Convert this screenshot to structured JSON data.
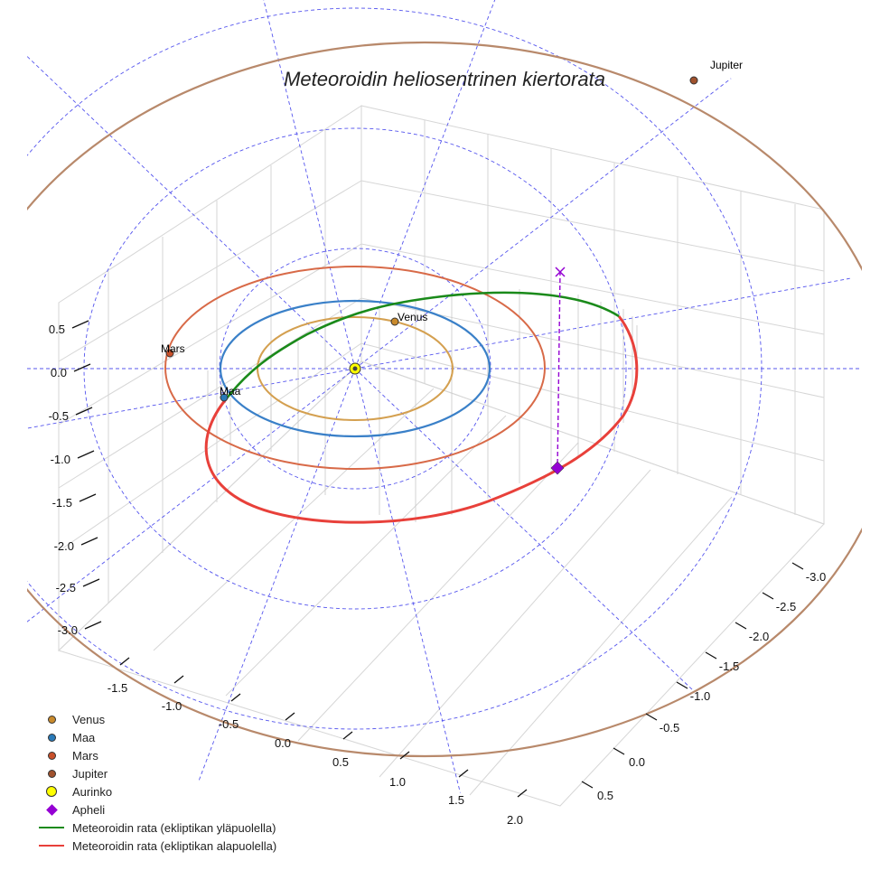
{
  "chart_data": {
    "type": "line",
    "projection": "3d",
    "title": "Meteoroidin heliosentrinen kiertorata",
    "axes": {
      "x": {
        "label": "",
        "ticks": [
          "-1.5",
          "-1.0",
          "-0.5",
          "0.0",
          "0.5",
          "1.0",
          "1.5",
          "2.0"
        ]
      },
      "y": {
        "label": "",
        "ticks": [
          "-3.0",
          "-2.5",
          "-2.0",
          "-1.5",
          "-1.0",
          "-0.5",
          "0.0",
          "0.5"
        ]
      },
      "z": {
        "label": "",
        "ticks": [
          "0.5",
          "0.0",
          "-0.5",
          "-1.0",
          "-1.5",
          "-2.0",
          "-2.5",
          "-3.0"
        ]
      }
    },
    "reference_circles_au": [
      1,
      2,
      3
    ],
    "planets": [
      {
        "name": "Venus",
        "label": "Venus",
        "orbit_radius_au": 0.72,
        "color": "#c98a2c",
        "orbit_color": "#d4a050"
      },
      {
        "name": "Maa",
        "label": "Maa",
        "orbit_radius_au": 1.0,
        "color": "#2a7ab8",
        "orbit_color": "#3a80c8"
      },
      {
        "name": "Mars",
        "label": "Mars",
        "orbit_radius_au": 1.52,
        "color": "#c8502a",
        "orbit_color": "#d86a48"
      },
      {
        "name": "Jupiter",
        "label": "Jupiter",
        "orbit_radius_au": 5.2,
        "color": "#a0522d",
        "orbit_color": "#b8896b"
      }
    ],
    "sun": {
      "name": "Aurinko",
      "color": "#ffff00"
    },
    "aphelion": {
      "name": "Apheli",
      "color": "#9400d3"
    },
    "meteoroid": {
      "above_label": "Meteoroidin rata (ekliptikan yläpuolella)",
      "below_label": "Meteoroidin rata (ekliptikan alapuolella)",
      "above_color": "#1a8a1a",
      "below_color": "#e8403a"
    },
    "legend": [
      {
        "label": "Venus",
        "kind": "dot",
        "color": "#c98a2c"
      },
      {
        "label": "Maa",
        "kind": "dot",
        "color": "#2a7ab8"
      },
      {
        "label": "Mars",
        "kind": "dot",
        "color": "#c8502a"
      },
      {
        "label": "Jupiter",
        "kind": "dot",
        "color": "#a0522d"
      },
      {
        "label": "Aurinko",
        "kind": "sun",
        "color": "#ffff00"
      },
      {
        "label": "Apheli",
        "kind": "diamond",
        "color": "#9400d3"
      },
      {
        "label": "Meteoroidin rata (ekliptikan yläpuolella)",
        "kind": "line",
        "color": "#1a8a1a"
      },
      {
        "label": "Meteoroidin rata (ekliptikan alapuolella)",
        "kind": "line",
        "color": "#e8403a"
      }
    ]
  }
}
